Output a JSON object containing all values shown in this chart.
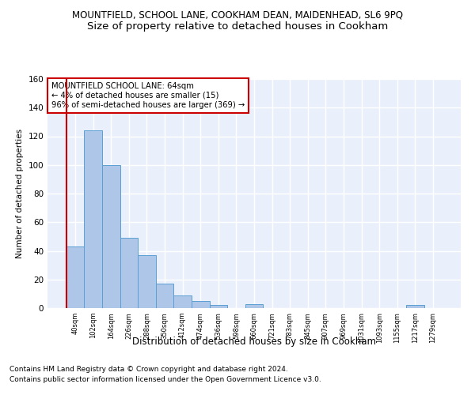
{
  "title": "MOUNTFIELD, SCHOOL LANE, COOKHAM DEAN, MAIDENHEAD, SL6 9PQ",
  "subtitle": "Size of property relative to detached houses in Cookham",
  "xlabel": "Distribution of detached houses by size in Cookham",
  "ylabel": "Number of detached properties",
  "categories": [
    "40sqm",
    "102sqm",
    "164sqm",
    "226sqm",
    "288sqm",
    "350sqm",
    "412sqm",
    "474sqm",
    "536sqm",
    "598sqm",
    "660sqm",
    "721sqm",
    "783sqm",
    "845sqm",
    "907sqm",
    "969sqm",
    "1031sqm",
    "1093sqm",
    "1155sqm",
    "1217sqm",
    "1279sqm"
  ],
  "values": [
    43,
    124,
    100,
    49,
    37,
    17,
    9,
    5,
    2,
    0,
    3,
    0,
    0,
    0,
    0,
    0,
    0,
    0,
    0,
    2,
    0
  ],
  "bar_color": "#aec6e8",
  "bar_edge_color": "#5a9fd4",
  "vline_color": "#cc0000",
  "annotation_text": "MOUNTFIELD SCHOOL LANE: 64sqm\n← 4% of detached houses are smaller (15)\n96% of semi-detached houses are larger (369) →",
  "annotation_box_color": "#ffffff",
  "annotation_box_edge": "#cc0000",
  "ylim": [
    0,
    160
  ],
  "yticks": [
    0,
    20,
    40,
    60,
    80,
    100,
    120,
    140,
    160
  ],
  "footer1": "Contains HM Land Registry data © Crown copyright and database right 2024.",
  "footer2": "Contains public sector information licensed under the Open Government Licence v3.0.",
  "background_color": "#eaf0fb",
  "grid_color": "#ffffff",
  "title_fontsize": 8.5,
  "subtitle_fontsize": 9.5
}
